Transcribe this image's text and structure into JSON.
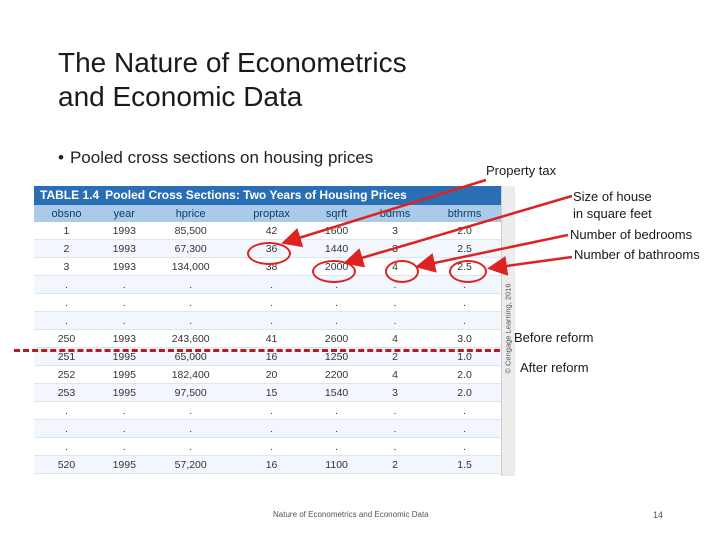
{
  "slide": {
    "title_line1": "The Nature of Econometrics",
    "title_line2": "and Economic Data",
    "bullet_marker": "•",
    "bullet": "Pooled cross sections on housing prices"
  },
  "table": {
    "caption_number": "TABLE 1.4",
    "caption_title": "Pooled Cross Sections: Two Years of Housing Prices",
    "headers": [
      "obsno",
      "year",
      "hprice",
      "proptax",
      "sqrft",
      "bdrms",
      "bthrms"
    ],
    "rows": [
      [
        "1",
        "1993",
        "85,500",
        "42",
        "1600",
        "3",
        "2.0"
      ],
      [
        "2",
        "1993",
        "67,300",
        "36",
        "1440",
        "3",
        "2.5"
      ],
      [
        "3",
        "1993",
        "134,000",
        "38",
        "2000",
        "4",
        "2.5"
      ],
      [
        ".",
        ".",
        ".",
        ".",
        ".",
        ".",
        "."
      ],
      [
        ".",
        ".",
        ".",
        ".",
        ".",
        ".",
        "."
      ],
      [
        ".",
        ".",
        ".",
        ".",
        ".",
        ".",
        "."
      ],
      [
        "250",
        "1993",
        "243,600",
        "41",
        "2600",
        "4",
        "3.0"
      ],
      [
        "251",
        "1995",
        "65,000",
        "16",
        "1250",
        "2",
        "1.0"
      ],
      [
        "252",
        "1995",
        "182,400",
        "20",
        "2200",
        "4",
        "2.0"
      ],
      [
        "253",
        "1995",
        "97,500",
        "15",
        "1540",
        "3",
        "2.0"
      ],
      [
        ".",
        ".",
        ".",
        ".",
        ".",
        ".",
        "."
      ],
      [
        ".",
        ".",
        ".",
        ".",
        ".",
        ".",
        "."
      ],
      [
        ".",
        ".",
        ".",
        ".",
        ".",
        ".",
        "."
      ],
      [
        "520",
        "1995",
        "57,200",
        "16",
        "1100",
        "2",
        "1.5"
      ]
    ],
    "side_credit": "© Cengage Learning, 2016"
  },
  "callouts": {
    "property_tax": "Property tax",
    "size_line1": "Size of house",
    "size_line2": "in square feet",
    "bedrooms": "Number of bedrooms",
    "bathrooms": "Number of bathrooms",
    "before_reform": "Before reform",
    "after_reform": "After reform"
  },
  "colors": {
    "annotation_red": "#d22",
    "table_header_blue": "#2a6fb3",
    "column_header_blue": "#a9cae8"
  },
  "footer": {
    "text": "Nature of Econometrics and Economic Data",
    "page_number": "14"
  }
}
